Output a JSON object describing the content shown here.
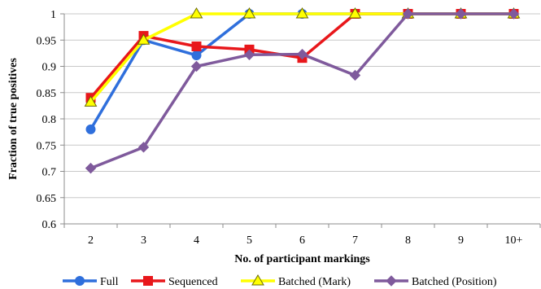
{
  "chart_data": {
    "type": "line",
    "xlabel": "No. of participant markings",
    "ylabel": "Fraction of true positives",
    "categories": [
      "2",
      "3",
      "4",
      "5",
      "6",
      "7",
      "8",
      "9",
      "10+"
    ],
    "ylim": [
      0.6,
      1.0
    ],
    "yticks": [
      "0.6",
      "0.65",
      "0.7",
      "0.75",
      "0.8",
      "0.85",
      "0.9",
      "0.95",
      "1"
    ],
    "grid": "horizontal",
    "legend_position": "bottom",
    "series": [
      {
        "name": "Full",
        "color": "#2f6fdc",
        "marker": "circle",
        "values": [
          0.78,
          0.95,
          0.921,
          1.0,
          1.0,
          1.0,
          1.0,
          1.0,
          1.0
        ]
      },
      {
        "name": "Sequenced",
        "color": "#e8171b",
        "marker": "square",
        "values": [
          0.84,
          0.958,
          0.938,
          0.932,
          0.916,
          1.0,
          1.0,
          1.0,
          1.0
        ]
      },
      {
        "name": "Batched (Mark)",
        "color": "#ffff00",
        "marker": "triangle",
        "values": [
          0.832,
          0.95,
          1.0,
          1.0,
          1.0,
          1.0,
          1.0,
          1.0,
          1.0
        ]
      },
      {
        "name": "Batched (Position)",
        "color": "#7f5a9c",
        "marker": "diamond",
        "values": [
          0.706,
          0.746,
          0.9,
          0.922,
          0.923,
          0.883,
          1.0,
          1.0,
          1.0
        ]
      }
    ]
  }
}
